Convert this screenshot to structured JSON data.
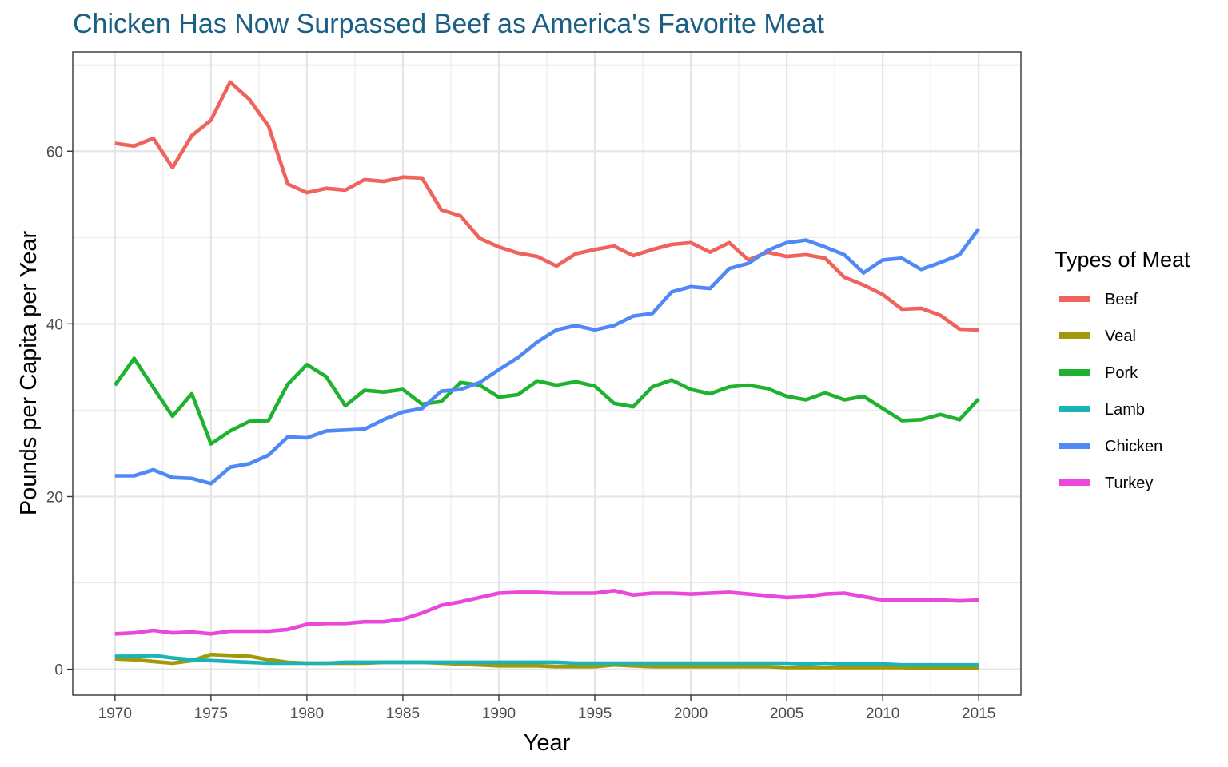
{
  "chart_data": {
    "type": "line",
    "title": "Chicken Has Now Surpassed Beef as America's Favorite Meat",
    "xlabel": "Year",
    "ylabel": "Pounds per Capita per Year",
    "xlim": [
      1967.8,
      2017.2
    ],
    "ylim": [
      -3,
      71.5
    ],
    "x_ticks": [
      1970,
      1975,
      1980,
      1985,
      1990,
      1995,
      2000,
      2005,
      2010,
      2015
    ],
    "x_tick_labels": [
      "1970",
      "1975",
      "1980",
      "1985",
      "1990",
      "1995",
      "2000",
      "2005",
      "2010",
      "2015"
    ],
    "y_ticks": [
      0,
      20,
      40,
      60
    ],
    "y_tick_labels": [
      "0",
      "20",
      "40",
      "60"
    ],
    "grid": true,
    "legend": {
      "title": "Types of Meat",
      "placement": "right"
    },
    "x": [
      1970,
      1971,
      1972,
      1973,
      1974,
      1975,
      1976,
      1977,
      1978,
      1979,
      1980,
      1981,
      1982,
      1983,
      1984,
      1985,
      1986,
      1987,
      1988,
      1989,
      1990,
      1991,
      1992,
      1993,
      1994,
      1995,
      1996,
      1997,
      1998,
      1999,
      2000,
      2001,
      2002,
      2003,
      2004,
      2005,
      2006,
      2007,
      2008,
      2009,
      2010,
      2011,
      2012,
      2013,
      2014,
      2015
    ],
    "series": [
      {
        "name": "Beef",
        "color": "#f0625c",
        "values": [
          60.9,
          60.6,
          61.5,
          58.1,
          61.8,
          63.6,
          68.0,
          66.0,
          62.9,
          56.2,
          55.2,
          55.7,
          55.5,
          56.7,
          56.5,
          57.0,
          56.9,
          53.2,
          52.5,
          49.9,
          48.9,
          48.2,
          47.8,
          46.7,
          48.1,
          48.6,
          49.0,
          47.9,
          48.6,
          49.2,
          49.4,
          48.3,
          49.4,
          47.4,
          48.3,
          47.8,
          48.0,
          47.6,
          45.4,
          44.5,
          43.4,
          41.7,
          41.8,
          41.0,
          39.4,
          39.3
        ]
      },
      {
        "name": "Veal",
        "color": "#a3980a",
        "values": [
          1.2,
          1.1,
          0.9,
          0.7,
          1.0,
          1.7,
          1.6,
          1.5,
          1.1,
          0.8,
          0.7,
          0.7,
          0.7,
          0.7,
          0.8,
          0.8,
          0.8,
          0.7,
          0.6,
          0.5,
          0.4,
          0.4,
          0.4,
          0.3,
          0.3,
          0.3,
          0.5,
          0.4,
          0.3,
          0.3,
          0.3,
          0.3,
          0.3,
          0.3,
          0.3,
          0.2,
          0.2,
          0.2,
          0.2,
          0.2,
          0.2,
          0.2,
          0.1,
          0.1,
          0.1,
          0.1
        ]
      },
      {
        "name": "Pork",
        "color": "#1fb231",
        "values": [
          32.9,
          36.0,
          32.6,
          29.3,
          31.9,
          26.1,
          27.6,
          28.7,
          28.8,
          33.0,
          35.3,
          33.9,
          30.5,
          32.3,
          32.1,
          32.4,
          30.7,
          31.0,
          33.2,
          32.9,
          31.5,
          31.8,
          33.4,
          32.9,
          33.3,
          32.8,
          30.8,
          30.4,
          32.7,
          33.5,
          32.4,
          31.9,
          32.7,
          32.9,
          32.5,
          31.6,
          31.2,
          32.0,
          31.2,
          31.6,
          30.2,
          28.8,
          28.9,
          29.5,
          28.9,
          31.3
        ]
      },
      {
        "name": "Lamb",
        "color": "#1ab3b6",
        "values": [
          1.5,
          1.5,
          1.6,
          1.3,
          1.1,
          1.0,
          0.9,
          0.8,
          0.7,
          0.7,
          0.7,
          0.7,
          0.8,
          0.8,
          0.8,
          0.8,
          0.8,
          0.8,
          0.8,
          0.8,
          0.8,
          0.8,
          0.8,
          0.8,
          0.7,
          0.7,
          0.7,
          0.7,
          0.7,
          0.7,
          0.7,
          0.7,
          0.7,
          0.7,
          0.7,
          0.7,
          0.6,
          0.7,
          0.6,
          0.6,
          0.6,
          0.5,
          0.5,
          0.5,
          0.5,
          0.5
        ]
      },
      {
        "name": "Chicken",
        "color": "#5088f8",
        "values": [
          22.4,
          22.4,
          23.1,
          22.2,
          22.1,
          21.5,
          23.4,
          23.8,
          24.8,
          26.9,
          26.8,
          27.6,
          27.7,
          27.8,
          28.9,
          29.8,
          30.2,
          32.2,
          32.4,
          33.2,
          34.7,
          36.1,
          37.9,
          39.3,
          39.8,
          39.3,
          39.8,
          40.9,
          41.2,
          43.7,
          44.3,
          44.1,
          46.4,
          47.0,
          48.5,
          49.4,
          49.7,
          48.9,
          48.0,
          45.9,
          47.4,
          47.6,
          46.3,
          47.1,
          48.0,
          51.0
        ]
      },
      {
        "name": "Turkey",
        "color": "#ea47dc",
        "values": [
          4.1,
          4.2,
          4.5,
          4.2,
          4.3,
          4.1,
          4.4,
          4.4,
          4.4,
          4.6,
          5.2,
          5.3,
          5.3,
          5.5,
          5.5,
          5.8,
          6.5,
          7.4,
          7.8,
          8.3,
          8.8,
          8.9,
          8.9,
          8.8,
          8.8,
          8.8,
          9.1,
          8.6,
          8.8,
          8.8,
          8.7,
          8.8,
          8.9,
          8.7,
          8.5,
          8.3,
          8.4,
          8.7,
          8.8,
          8.4,
          8.0,
          8.0,
          8.0,
          8.0,
          7.9,
          8.0
        ]
      }
    ]
  }
}
